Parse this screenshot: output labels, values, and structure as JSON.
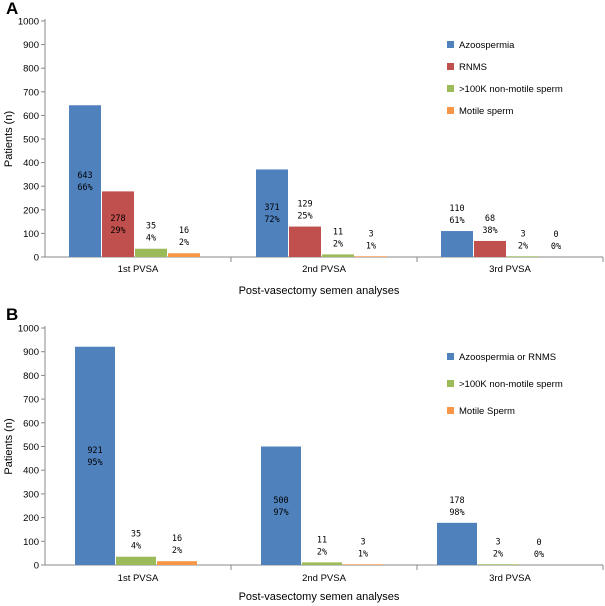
{
  "chart_data": [
    {
      "panel": "A",
      "type": "bar",
      "title": "",
      "xlabel": "Post-vasectomy semen analyses",
      "ylabel": "Patients (n)",
      "ylim": [
        0,
        1000
      ],
      "yticks": [
        0,
        100,
        200,
        300,
        400,
        500,
        600,
        700,
        800,
        900,
        1000
      ],
      "grid": false,
      "legend_position": "top-right",
      "categories": [
        "1st PVSA",
        "2nd PVSA",
        "3rd PVSA"
      ],
      "series": [
        {
          "name": "Azoospermia",
          "color": "#4f81bd",
          "values": [
            643,
            371,
            110
          ],
          "labels": [
            [
              "643",
              "66%"
            ],
            [
              "371",
              "72%"
            ],
            [
              "110",
              "61%"
            ]
          ]
        },
        {
          "name": "RNMS",
          "color": "#c0504d",
          "values": [
            278,
            129,
            68
          ],
          "labels": [
            [
              "278",
              "29%"
            ],
            [
              "129",
              "25%"
            ],
            [
              "68",
              "38%"
            ]
          ]
        },
        {
          "name": ">100K non-motile sperm",
          "color": "#9bbb59",
          "values": [
            35,
            11,
            3
          ],
          "labels": [
            [
              "35",
              "4%"
            ],
            [
              "11",
              "2%"
            ],
            [
              "3",
              "2%"
            ]
          ]
        },
        {
          "name": "Motile sperm",
          "color": "#f79646",
          "values": [
            16,
            3,
            0
          ],
          "labels": [
            [
              "16",
              "2%"
            ],
            [
              "3",
              "1%"
            ],
            [
              "0",
              "0%"
            ]
          ]
        }
      ]
    },
    {
      "panel": "B",
      "type": "bar",
      "title": "",
      "xlabel": "Post-vasectomy semen analyses",
      "ylabel": "Patients (n)",
      "ylim": [
        0,
        1000
      ],
      "yticks": [
        0,
        100,
        200,
        300,
        400,
        500,
        600,
        700,
        800,
        900,
        1000
      ],
      "grid": false,
      "legend_position": "top-right",
      "categories": [
        "1st PVSA",
        "2nd PVSA",
        "3rd PVSA"
      ],
      "series": [
        {
          "name": "Azoospermia or RNMS",
          "color": "#4f81bd",
          "values": [
            921,
            500,
            178
          ],
          "labels": [
            [
              "921",
              "95%"
            ],
            [
              "500",
              "97%"
            ],
            [
              "178",
              "98%"
            ]
          ]
        },
        {
          "name": ">100K non-motile sperm",
          "color": "#9bbb59",
          "values": [
            35,
            11,
            3
          ],
          "labels": [
            [
              "35",
              "4%"
            ],
            [
              "11",
              "2%"
            ],
            [
              "3",
              "2%"
            ]
          ]
        },
        {
          "name": "Motile Sperm",
          "color": "#f79646",
          "values": [
            16,
            3,
            0
          ],
          "labels": [
            [
              "16",
              "2%"
            ],
            [
              "3",
              "1%"
            ],
            [
              "0",
              "0%"
            ]
          ]
        }
      ]
    }
  ]
}
